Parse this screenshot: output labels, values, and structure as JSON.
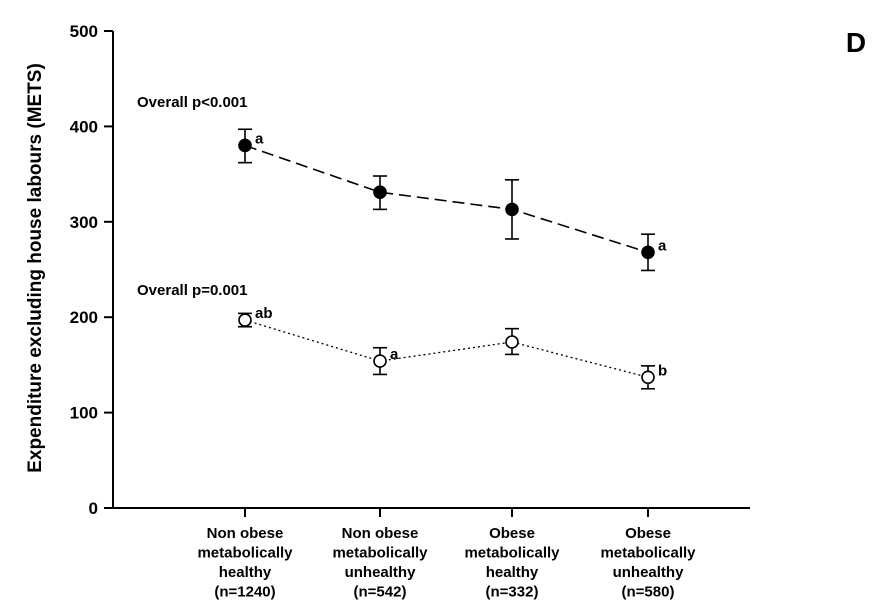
{
  "chart_data": {
    "type": "line",
    "panel_label": "D",
    "ylabel": "Expenditure excluding house labours (METS)",
    "xlabel": "",
    "ylim": [
      0,
      500
    ],
    "yticks": [
      0,
      100,
      200,
      300,
      400,
      500
    ],
    "categories": [
      [
        "Non obese",
        "metabolically",
        "healthy",
        "(n=1240)"
      ],
      [
        "Non obese",
        "metabolically",
        "unhealthy",
        "(n=542)"
      ],
      [
        "Obese",
        "metabolically",
        "healthy",
        "(n=332)"
      ],
      [
        "Obese",
        "metabolically",
        "unhealthy",
        "(n=580)"
      ]
    ],
    "series": [
      {
        "marker": "filled-circle",
        "line_style": "dashed",
        "values": [
          380,
          331,
          313,
          268
        ],
        "error_low": [
          362,
          313,
          282,
          249
        ],
        "error_high": [
          397,
          348,
          344,
          287
        ],
        "point_labels": [
          "a",
          "",
          "",
          "a"
        ],
        "overall_label": "Overall p<0.001"
      },
      {
        "marker": "open-circle",
        "line_style": "dotted",
        "values": [
          197,
          154,
          174,
          137
        ],
        "error_low": [
          190,
          140,
          161,
          125
        ],
        "error_high": [
          204,
          168,
          188,
          149
        ],
        "point_labels": [
          "ab",
          "a",
          "",
          "b"
        ],
        "overall_label": "Overall p=0.001"
      }
    ],
    "grid": false,
    "legend": "none",
    "colors": {
      "axis": "#000000",
      "marker_fill": "#000000",
      "marker_open_fill": "#ffffff"
    }
  }
}
